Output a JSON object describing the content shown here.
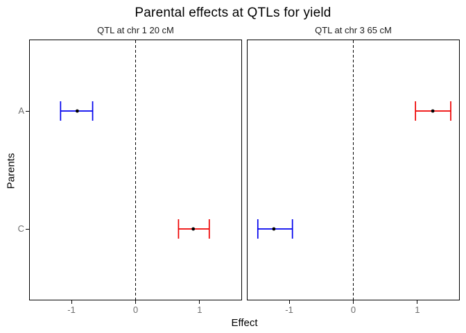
{
  "chart_data": {
    "type": "scatter",
    "subtype": "dot-with-horizontal-errorbars-faceted",
    "title": "Parental effects at QTLs for yield",
    "xlabel": "Effect",
    "ylabel": "Parents",
    "categories": [
      "A",
      "C"
    ],
    "x_ticks": [
      -1,
      0,
      1
    ],
    "xlim": [
      -1.65,
      1.65
    ],
    "reference_line_x": 0,
    "reference_line_style": "dashed",
    "grid": false,
    "legend_position": "none",
    "colors": {
      "negative_effect": "#0000ee",
      "positive_effect": "#ee0000",
      "point": "#000000",
      "panel_border": "#000000",
      "axis_text": "#6e6e6e"
    },
    "panels": [
      {
        "label": "QTL at chr 1 20 cM",
        "points": [
          {
            "parent": "A",
            "x": -0.91,
            "xmin": -1.17,
            "xmax": -0.67,
            "color": "#0000ee"
          },
          {
            "parent": "C",
            "x": 0.9,
            "xmin": 0.67,
            "xmax": 1.15,
            "color": "#ee0000"
          }
        ]
      },
      {
        "label": "QTL at chr 3 65 cM",
        "points": [
          {
            "parent": "A",
            "x": 1.24,
            "xmin": 0.97,
            "xmax": 1.52,
            "color": "#ee0000"
          },
          {
            "parent": "C",
            "x": -1.24,
            "xmin": -1.49,
            "xmax": -0.95,
            "color": "#0000ee"
          }
        ]
      }
    ]
  }
}
